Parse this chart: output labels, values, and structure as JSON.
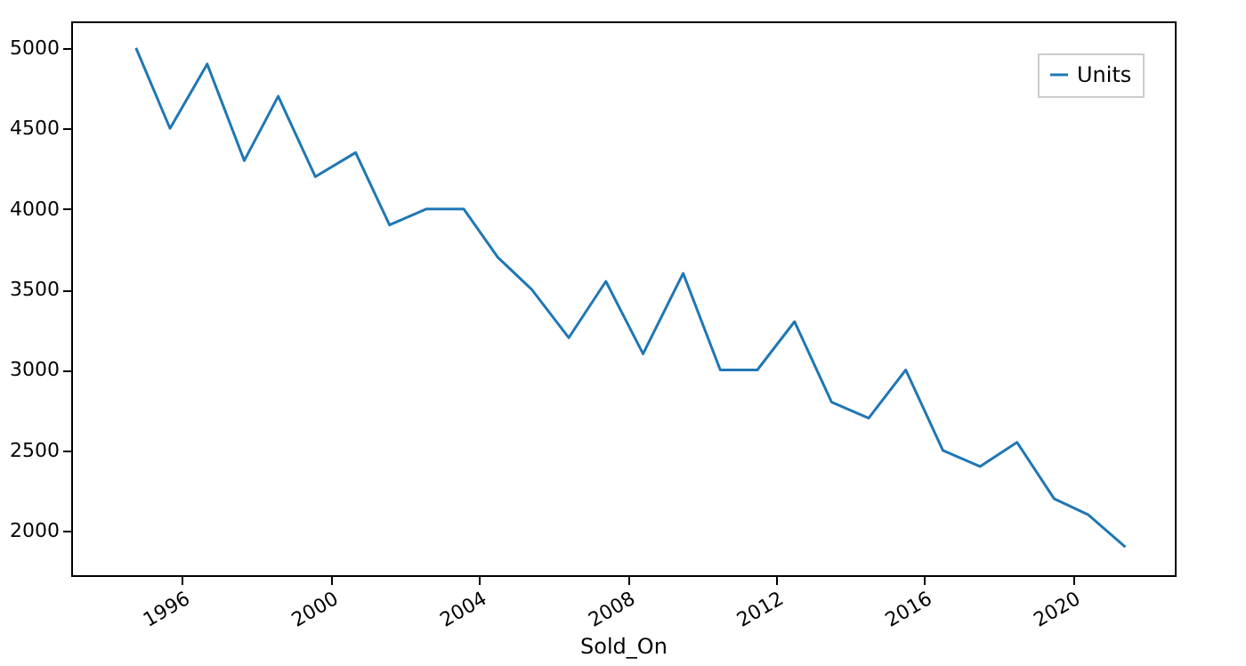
{
  "chart_data": {
    "type": "line",
    "xlabel": "Sold_On",
    "x": [
      "1994-10",
      "1995-09",
      "1996-09",
      "1997-09",
      "1998-08",
      "1999-08",
      "2000-09",
      "2001-08",
      "2002-08",
      "2003-08",
      "2004-07",
      "2005-06",
      "2006-06",
      "2007-06",
      "2008-06",
      "2009-07",
      "2010-07",
      "2011-07",
      "2012-07",
      "2013-07",
      "2014-07",
      "2015-07",
      "2016-07",
      "2017-07",
      "2018-07",
      "2019-07",
      "2020-06",
      "2021-06"
    ],
    "series": [
      {
        "name": "Units",
        "color": "#1f77b4",
        "values": [
          5000,
          4500,
          4900,
          4300,
          4700,
          4200,
          4350,
          3900,
          4000,
          4000,
          3700,
          3500,
          3200,
          3550,
          3100,
          3600,
          3000,
          3000,
          3300,
          2800,
          2700,
          3000,
          2500,
          2400,
          2550,
          2200,
          2100,
          1900
        ]
      }
    ],
    "xlim": [
      "1993-01",
      "2022-10"
    ],
    "xticks": [
      "1996",
      "2000",
      "2004",
      "2008",
      "2012",
      "2016",
      "2020"
    ],
    "ylim": [
      1725,
      5165
    ],
    "yticks": [
      2000,
      2500,
      3000,
      3500,
      4000,
      4500,
      5000
    ],
    "grid": false,
    "legend": "top right",
    "marker": "none",
    "line_style": "solid"
  }
}
